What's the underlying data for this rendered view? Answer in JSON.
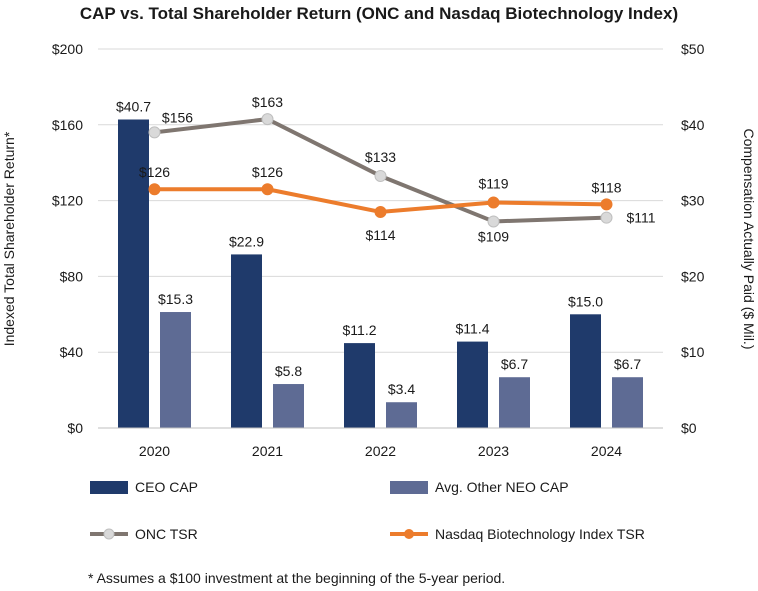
{
  "chart_data": {
    "type": "bar",
    "title": "CAP vs. Total Shareholder Return (ONC and Nasdaq Biotechnology Index)",
    "categories": [
      "2020",
      "2021",
      "2022",
      "2023",
      "2024"
    ],
    "ylabel_left": "Indexed Total Shareholder Return*",
    "ylabel_right": "Compensation Actually Paid ($ Mil.)",
    "ylim_left": [
      0,
      200
    ],
    "ylim_right": [
      0,
      50
    ],
    "left_ticks": [
      "$0",
      "$40",
      "$80",
      "$120",
      "$160",
      "$200"
    ],
    "right_ticks": [
      "$0",
      "$10",
      "$20",
      "$30",
      "$40",
      "$50"
    ],
    "grid": true,
    "bar_series": [
      {
        "name": "CEO CAP",
        "axis": "right",
        "color": "#1f3a6b",
        "values": [
          40.7,
          22.9,
          11.2,
          11.4,
          15.0
        ],
        "labels": [
          "$40.7",
          "$22.9",
          "$11.2",
          "$11.4",
          "$15.0"
        ]
      },
      {
        "name": "Avg. Other NEO CAP",
        "axis": "right",
        "color": "#5e6b94",
        "values": [
          15.3,
          5.8,
          3.4,
          6.7,
          6.7
        ],
        "labels": [
          "$15.3",
          "$5.8",
          "$3.4",
          "$6.7",
          "$6.7"
        ]
      }
    ],
    "line_series": [
      {
        "name": "ONC TSR",
        "axis": "left",
        "color": "#7f7670",
        "marker": "#d9d9d9",
        "values": [
          156,
          163,
          133,
          109,
          111
        ],
        "labels": [
          "$156",
          "$163",
          "$133",
          "$109",
          "$111"
        ]
      },
      {
        "name": "Nasdaq Biotechnology Index TSR",
        "axis": "left",
        "color": "#ec7c2c",
        "marker": "#ec7c2c",
        "values": [
          126,
          126,
          114,
          119,
          118
        ],
        "labels": [
          "$126",
          "$126",
          "$114",
          "$119",
          "$118"
        ]
      }
    ],
    "legend": [
      "CEO CAP",
      "Avg. Other NEO CAP",
      "ONC TSR",
      "Nasdaq Biotechnology Index TSR"
    ],
    "legend_position": "bottom",
    "footnote": "* Assumes a $100 investment at the beginning of the 5-year period."
  }
}
